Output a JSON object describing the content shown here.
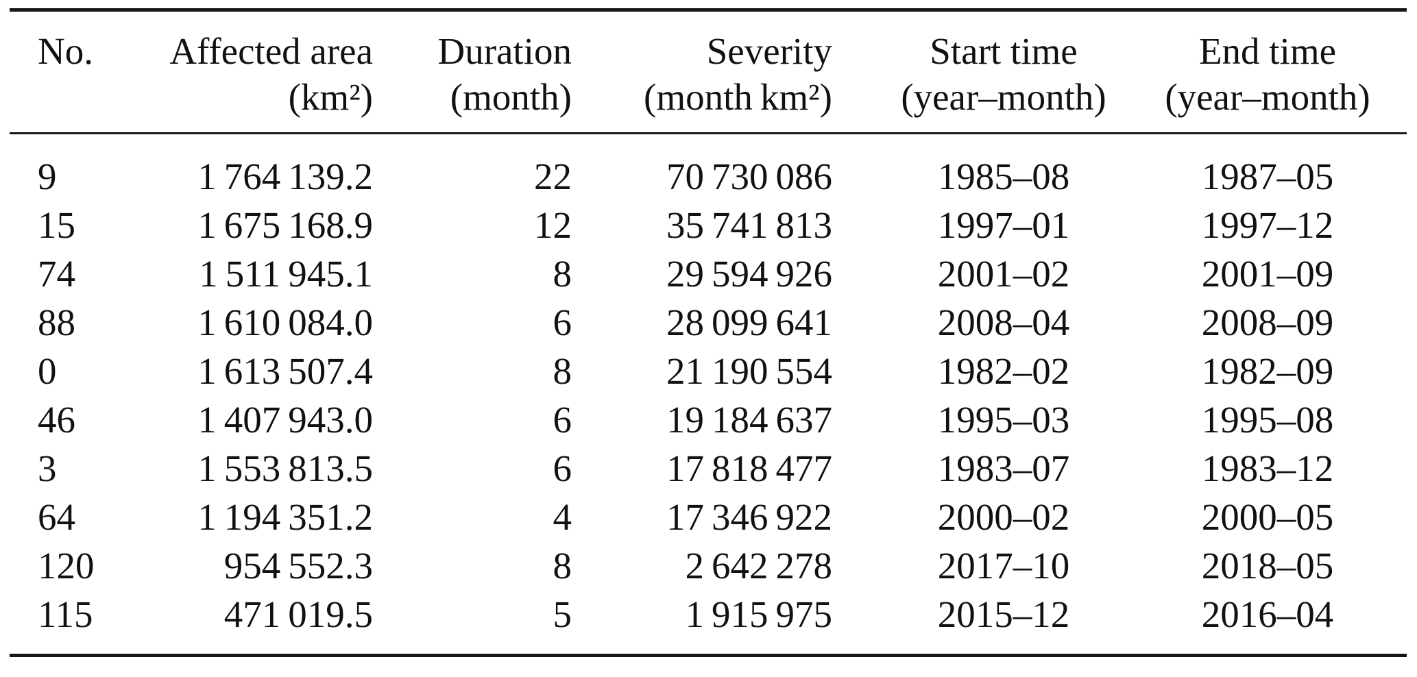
{
  "page": {
    "background": "#ffffff",
    "text_color": "#111111",
    "rule_color": "#161616"
  },
  "table": {
    "columns": [
      {
        "id": "no",
        "align": "left",
        "lines": [
          "No."
        ]
      },
      {
        "id": "affected-area",
        "align": "right",
        "lines": [
          "Affected area",
          "(km²)"
        ]
      },
      {
        "id": "duration",
        "align": "right",
        "lines": [
          "Duration",
          "(month)"
        ]
      },
      {
        "id": "severity",
        "align": "right",
        "lines": [
          "Severity",
          "(month km²)"
        ]
      },
      {
        "id": "start-time",
        "align": "center",
        "lines": [
          "Start time",
          "(year–month)"
        ]
      },
      {
        "id": "end-time",
        "align": "center",
        "lines": [
          "End time",
          "(year–month)"
        ]
      }
    ],
    "rows": [
      [
        "9",
        "1 764 139.2",
        "22",
        "70 730 086",
        "1985–08",
        "1987–05"
      ],
      [
        "15",
        "1 675 168.9",
        "12",
        "35 741 813",
        "1997–01",
        "1997–12"
      ],
      [
        "74",
        "1 511 945.1",
        "8",
        "29 594 926",
        "2001–02",
        "2001–09"
      ],
      [
        "88",
        "1 610 084.0",
        "6",
        "28 099 641",
        "2008–04",
        "2008–09"
      ],
      [
        "0",
        "1 613 507.4",
        "8",
        "21 190 554",
        "1982–02",
        "1982–09"
      ],
      [
        "46",
        "1 407 943.0",
        "6",
        "19 184 637",
        "1995–03",
        "1995–08"
      ],
      [
        "3",
        "1 553 813.5",
        "6",
        "17 818 477",
        "1983–07",
        "1983–12"
      ],
      [
        "64",
        "1 194 351.2",
        "4",
        "17 346 922",
        "2000–02",
        "2000–05"
      ],
      [
        "120",
        "954 552.3",
        "8",
        "2 642 278",
        "2017–10",
        "2018–05"
      ],
      [
        "115",
        "471 019.5",
        "5",
        "1 915 975",
        "2015–12",
        "2016–04"
      ]
    ]
  }
}
